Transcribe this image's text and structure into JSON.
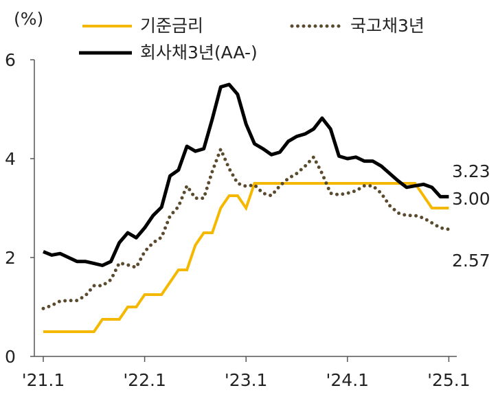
{
  "chart_data": {
    "type": "line",
    "ylabel": "(%)",
    "ylim": [
      0,
      6
    ],
    "yticks": [
      0,
      2,
      4,
      6
    ],
    "xticks": [
      "'21.1",
      "'22.1",
      "'23.1",
      "'24.1",
      "'25.1"
    ],
    "x": [
      "2021-01",
      "2021-02",
      "2021-03",
      "2021-04",
      "2021-05",
      "2021-06",
      "2021-07",
      "2021-08",
      "2021-09",
      "2021-10",
      "2021-11",
      "2021-12",
      "2022-01",
      "2022-02",
      "2022-03",
      "2022-04",
      "2022-05",
      "2022-06",
      "2022-07",
      "2022-08",
      "2022-09",
      "2022-10",
      "2022-11",
      "2022-12",
      "2023-01",
      "2023-02",
      "2023-03",
      "2023-04",
      "2023-05",
      "2023-06",
      "2023-07",
      "2023-08",
      "2023-09",
      "2023-10",
      "2023-11",
      "2023-12",
      "2024-01",
      "2024-02",
      "2024-03",
      "2024-04",
      "2024-05",
      "2024-06",
      "2024-07",
      "2024-08",
      "2024-09",
      "2024-10",
      "2024-11",
      "2024-12",
      "2025-01"
    ],
    "series": [
      {
        "name": "기준금리",
        "color": "#F5B800",
        "style": "solid",
        "values": [
          0.5,
          0.5,
          0.5,
          0.5,
          0.5,
          0.5,
          0.5,
          0.75,
          0.75,
          0.75,
          1.0,
          1.0,
          1.25,
          1.25,
          1.25,
          1.5,
          1.75,
          1.75,
          2.25,
          2.5,
          2.5,
          3.0,
          3.25,
          3.25,
          3.0,
          3.5,
          3.5,
          3.5,
          3.5,
          3.5,
          3.5,
          3.5,
          3.5,
          3.5,
          3.5,
          3.5,
          3.5,
          3.5,
          3.5,
          3.5,
          3.5,
          3.5,
          3.5,
          3.5,
          3.5,
          3.25,
          3.0,
          3.0,
          3.0
        ]
      },
      {
        "name": "국고채3년",
        "color": "#5A4A2E",
        "style": "dotted",
        "values": [
          0.97,
          1.03,
          1.12,
          1.13,
          1.13,
          1.23,
          1.43,
          1.43,
          1.55,
          1.89,
          1.85,
          1.8,
          2.12,
          2.3,
          2.41,
          2.84,
          3.03,
          3.45,
          3.2,
          3.2,
          3.74,
          4.19,
          3.8,
          3.5,
          3.44,
          3.47,
          3.3,
          3.25,
          3.45,
          3.6,
          3.7,
          3.85,
          4.03,
          3.7,
          3.3,
          3.27,
          3.3,
          3.35,
          3.45,
          3.45,
          3.3,
          3.05,
          2.9,
          2.85,
          2.85,
          2.8,
          2.7,
          2.6,
          2.57
        ]
      },
      {
        "name": "회사채3년(AA-)",
        "color": "#000000",
        "style": "solid",
        "values": [
          2.12,
          2.05,
          2.08,
          2.0,
          1.92,
          1.92,
          1.88,
          1.84,
          1.92,
          2.3,
          2.5,
          2.4,
          2.6,
          2.85,
          3.02,
          3.65,
          3.77,
          4.25,
          4.15,
          4.2,
          4.8,
          5.45,
          5.5,
          5.3,
          4.7,
          4.3,
          4.2,
          4.08,
          4.13,
          4.35,
          4.45,
          4.5,
          4.6,
          4.82,
          4.6,
          4.05,
          4.0,
          4.03,
          3.95,
          3.95,
          3.85,
          3.7,
          3.55,
          3.42,
          3.45,
          3.48,
          3.42,
          3.23,
          3.23
        ]
      }
    ],
    "end_labels": [
      "3.23",
      "3.00",
      "2.57"
    ]
  }
}
